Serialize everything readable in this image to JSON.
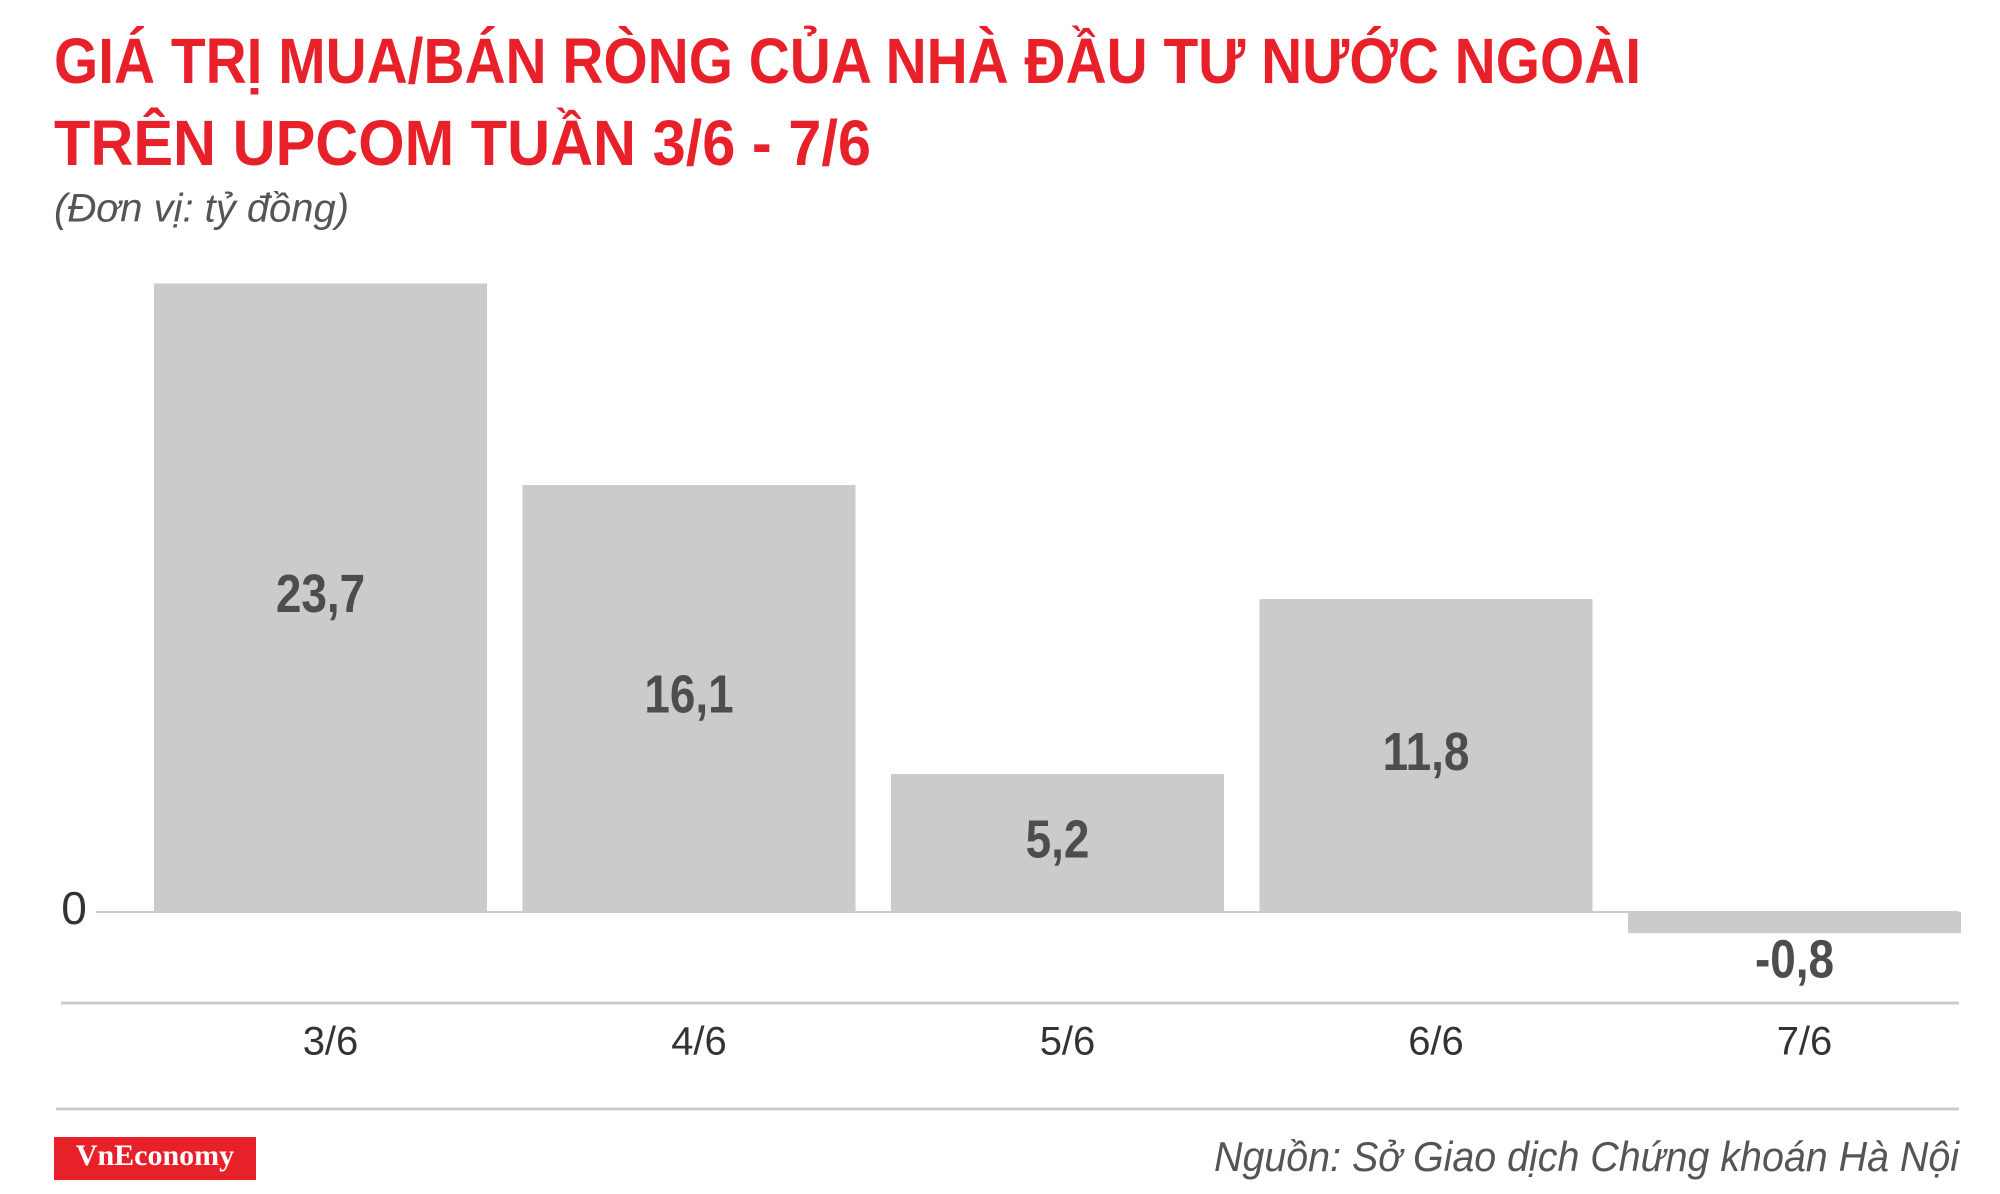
{
  "chart_data": {
    "type": "bar",
    "title": [
      "GIÁ TRỊ MUA/BÁN RÒNG CỦA NHÀ ĐẦU TƯ NƯỚC NGOÀI",
      "TRÊN UPCOM TUẦN 3/6 - 7/6"
    ],
    "subtitle": "(Đơn vị: tỷ đồng)",
    "categories": [
      "3/6",
      "4/6",
      "5/6",
      "6/6",
      "7/6"
    ],
    "values": [
      23.7,
      16.1,
      5.2,
      11.8,
      -0.8
    ],
    "value_labels": [
      "23,7",
      "16,1",
      "5,2",
      "11,8",
      "-0,8"
    ],
    "color": "#cccbcb",
    "ylim": [
      -2,
      24
    ],
    "yticks": [
      0
    ],
    "brand": "VnEconomy",
    "source": "Nguồn: Sở Giao dịch Chứng khoán Hà Nội"
  }
}
